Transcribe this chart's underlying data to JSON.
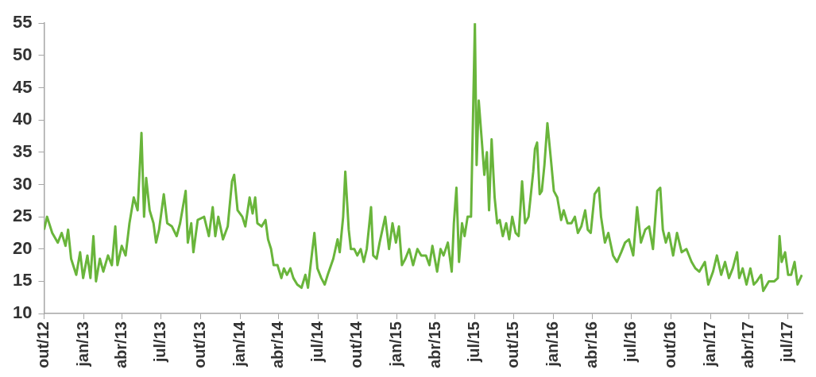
{
  "chart_data": {
    "type": "line",
    "xlim": [
      "2012-10-01",
      "2017-08-04"
    ],
    "ylim": [
      10,
      55
    ],
    "yticks": [
      10,
      15,
      20,
      25,
      30,
      35,
      40,
      45,
      50,
      55
    ],
    "xticks": [
      {
        "value": "2012-10-01",
        "label": "out/12"
      },
      {
        "value": "2013-01-01",
        "label": "jan/13"
      },
      {
        "value": "2013-04-01",
        "label": "abr/13"
      },
      {
        "value": "2013-07-01",
        "label": "jul/13"
      },
      {
        "value": "2013-10-01",
        "label": "out/13"
      },
      {
        "value": "2014-01-01",
        "label": "jan/14"
      },
      {
        "value": "2014-04-01",
        "label": "abr/14"
      },
      {
        "value": "2014-07-01",
        "label": "jul/14"
      },
      {
        "value": "2014-10-01",
        "label": "out/14"
      },
      {
        "value": "2015-01-01",
        "label": "jan/15"
      },
      {
        "value": "2015-04-01",
        "label": "abr/15"
      },
      {
        "value": "2015-07-01",
        "label": "jul/15"
      },
      {
        "value": "2015-10-01",
        "label": "out/15"
      },
      {
        "value": "2016-01-01",
        "label": "jan/16"
      },
      {
        "value": "2016-04-01",
        "label": "abr/16"
      },
      {
        "value": "2016-07-01",
        "label": "jul/16"
      },
      {
        "value": "2016-10-01",
        "label": "out/16"
      },
      {
        "value": "2017-01-01",
        "label": "jan/17"
      },
      {
        "value": "2017-04-01",
        "label": "abr/17"
      },
      {
        "value": "2017-07-01",
        "label": "jul/17"
      }
    ],
    "grid": false,
    "legend": false,
    "marker": "none",
    "line_style": "solid",
    "series": [
      {
        "color": "#69b53b",
        "x": [
          "2012-10-01",
          "2012-10-08",
          "2012-10-20",
          "2012-11-02",
          "2012-11-11",
          "2012-11-20",
          "2012-11-26",
          "2012-12-03",
          "2012-12-15",
          "2012-12-24",
          "2012-12-31",
          "2013-01-10",
          "2013-01-17",
          "2013-01-24",
          "2013-01-30",
          "2013-02-08",
          "2013-02-16",
          "2013-02-27",
          "2013-03-08",
          "2013-03-16",
          "2013-03-21",
          "2013-03-31",
          "2013-04-09",
          "2013-04-18",
          "2013-04-28",
          "2013-05-07",
          "2013-05-16",
          "2013-05-22",
          "2013-05-27",
          "2013-06-04",
          "2013-06-13",
          "2013-06-19",
          "2013-06-26",
          "2013-07-07",
          "2013-07-15",
          "2013-07-26",
          "2013-08-06",
          "2013-08-14",
          "2013-08-27",
          "2013-09-01",
          "2013-09-09",
          "2013-09-14",
          "2013-09-24",
          "2013-10-09",
          "2013-10-20",
          "2013-10-29",
          "2013-11-04",
          "2013-11-11",
          "2013-11-22",
          "2013-12-03",
          "2013-12-13",
          "2013-12-18",
          "2013-12-26",
          "2014-01-06",
          "2014-01-13",
          "2014-01-23",
          "2014-01-30",
          "2014-02-05",
          "2014-02-10",
          "2014-02-20",
          "2014-03-01",
          "2014-03-07",
          "2014-03-14",
          "2014-03-20",
          "2014-03-29",
          "2014-04-07",
          "2014-04-13",
          "2014-04-20",
          "2014-04-28",
          "2014-05-05",
          "2014-05-14",
          "2014-05-24",
          "2014-06-02",
          "2014-06-08",
          "2014-06-15",
          "2014-06-23",
          "2014-06-30",
          "2014-07-09",
          "2014-07-17",
          "2014-07-24",
          "2014-08-06",
          "2014-08-16",
          "2014-08-21",
          "2014-08-29",
          "2014-09-03",
          "2014-09-11",
          "2014-09-16",
          "2014-09-24",
          "2014-10-01",
          "2014-10-09",
          "2014-10-16",
          "2014-10-23",
          "2014-11-02",
          "2014-11-07",
          "2014-11-15",
          "2014-11-22",
          "2014-12-05",
          "2014-12-14",
          "2014-12-22",
          "2014-12-30",
          "2015-01-06",
          "2015-01-13",
          "2015-01-21",
          "2015-01-30",
          "2015-02-08",
          "2015-02-18",
          "2015-02-27",
          "2015-03-10",
          "2015-03-18",
          "2015-03-25",
          "2015-04-05",
          "2015-04-13",
          "2015-04-20",
          "2015-04-30",
          "2015-05-09",
          "2015-05-14",
          "2015-05-20",
          "2015-05-26",
          "2015-06-02",
          "2015-06-08",
          "2015-06-15",
          "2015-06-23",
          "2015-07-02",
          "2015-07-06",
          "2015-07-11",
          "2015-07-19",
          "2015-07-24",
          "2015-07-30",
          "2015-08-04",
          "2015-08-10",
          "2015-08-17",
          "2015-08-23",
          "2015-08-29",
          "2015-09-05",
          "2015-09-13",
          "2015-09-20",
          "2015-09-27",
          "2015-10-05",
          "2015-10-12",
          "2015-10-20",
          "2015-10-27",
          "2015-11-04",
          "2015-11-15",
          "2015-11-19",
          "2015-11-24",
          "2015-11-30",
          "2015-12-05",
          "2015-12-11",
          "2015-12-18",
          "2015-12-26",
          "2016-01-02",
          "2016-01-10",
          "2016-01-19",
          "2016-01-25",
          "2016-02-03",
          "2016-02-12",
          "2016-02-20",
          "2016-02-27",
          "2016-03-06",
          "2016-03-15",
          "2016-03-21",
          "2016-03-28",
          "2016-04-06",
          "2016-04-16",
          "2016-04-21",
          "2016-04-30",
          "2016-05-08",
          "2016-05-19",
          "2016-05-28",
          "2016-06-07",
          "2016-06-16",
          "2016-06-25",
          "2016-07-05",
          "2016-07-14",
          "2016-07-23",
          "2016-08-02",
          "2016-08-11",
          "2016-08-20",
          "2016-08-30",
          "2016-09-06",
          "2016-09-12",
          "2016-09-19",
          "2016-09-26",
          "2016-10-06",
          "2016-10-15",
          "2016-10-26",
          "2016-11-06",
          "2016-11-18",
          "2016-11-27",
          "2016-12-06",
          "2016-12-19",
          "2016-12-27",
          "2017-01-07",
          "2017-01-16",
          "2017-01-26",
          "2017-02-04",
          "2017-02-13",
          "2017-02-22",
          "2017-03-04",
          "2017-03-09",
          "2017-03-17",
          "2017-03-26",
          "2017-04-04",
          "2017-04-12",
          "2017-04-19",
          "2017-04-29",
          "2017-05-04",
          "2017-05-17",
          "2017-05-30",
          "2017-06-07",
          "2017-06-11",
          "2017-06-16",
          "2017-06-24",
          "2017-07-01",
          "2017-07-08",
          "2017-07-16",
          "2017-07-23",
          "2017-08-02"
        ],
        "values": [
          23,
          25,
          22.5,
          21,
          22.5,
          20.5,
          23,
          18.5,
          16,
          19.5,
          15.5,
          19,
          15.5,
          22,
          15,
          18.5,
          16.5,
          19,
          17.5,
          23.5,
          17.5,
          20.5,
          19,
          24,
          28,
          26,
          38,
          25,
          31,
          26,
          24,
          21,
          23,
          28.5,
          24,
          23.5,
          22,
          24,
          29,
          21,
          24,
          19.5,
          24.5,
          25,
          22,
          26.5,
          22,
          25,
          21.5,
          23.5,
          30.5,
          31.5,
          26,
          25,
          23.5,
          28,
          25.5,
          28,
          24,
          23.5,
          24.5,
          21.5,
          20,
          17.5,
          17.5,
          15.5,
          17,
          16,
          17,
          15.5,
          14.5,
          14,
          16,
          14,
          18,
          22.5,
          17,
          15.5,
          14.5,
          16,
          18.5,
          21.5,
          19.5,
          25,
          32,
          23,
          20,
          20,
          19,
          20,
          18,
          20,
          26.5,
          19,
          18.5,
          21,
          25,
          20,
          24,
          21,
          23.5,
          17.5,
          18.5,
          20,
          17.5,
          20,
          19,
          19,
          17.5,
          20.5,
          16.5,
          20,
          19,
          21,
          16.5,
          24,
          29.5,
          18,
          24,
          22,
          25,
          25,
          55,
          33,
          43,
          36,
          31.5,
          35,
          26,
          37,
          28,
          24,
          24.5,
          22,
          24,
          21.5,
          25,
          22.5,
          22,
          30.5,
          24,
          25,
          32,
          35.5,
          36.5,
          28.5,
          29,
          33,
          39.5,
          34,
          29,
          28,
          24.5,
          26,
          24,
          24,
          25,
          22.5,
          23.5,
          26,
          23,
          22.5,
          28.5,
          29.5,
          25,
          21,
          22.5,
          19,
          18,
          19.5,
          21,
          21.5,
          19,
          26.5,
          21,
          23,
          23.5,
          20,
          29,
          29.5,
          23,
          21,
          22.5,
          19,
          22.5,
          19.5,
          20,
          18,
          17,
          16.5,
          18,
          14.5,
          16.5,
          19,
          16,
          18,
          15.5,
          17,
          19.5,
          15.5,
          17,
          14.5,
          17,
          14.5,
          15,
          16,
          13.5,
          15,
          15,
          15.5,
          22,
          18,
          19.5,
          16,
          16,
          18,
          14.5,
          16
        ]
      }
    ]
  }
}
